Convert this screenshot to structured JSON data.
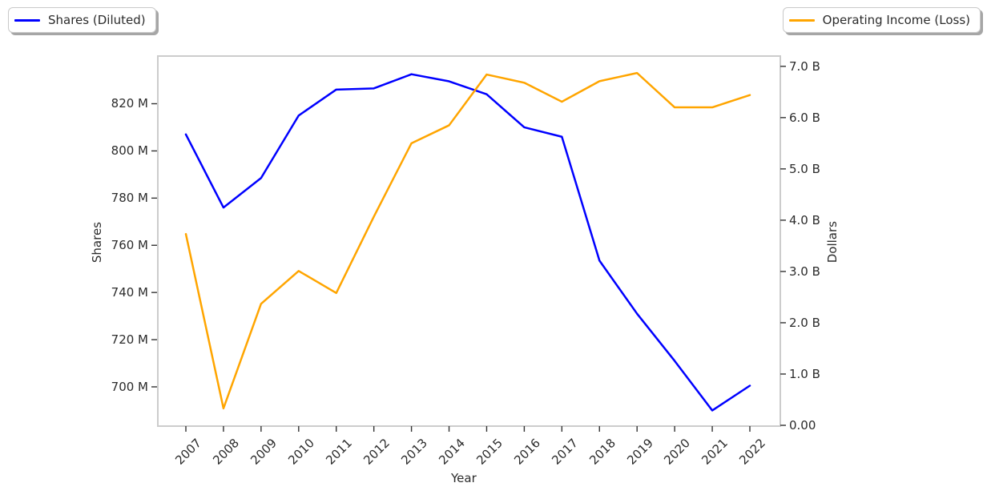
{
  "figure": {
    "background": "#ffffff",
    "plot_border_color": "#cccccc",
    "text_color": "#2b2b2b",
    "tick_color": "#333333"
  },
  "legends": {
    "left": {
      "label": "Shares (Diluted)",
      "color": "#0000ff"
    },
    "right": {
      "label": "Operating Income (Loss)",
      "color": "#ffa500"
    }
  },
  "chart_data": {
    "type": "line",
    "title": "",
    "xlabel": "Year",
    "grid": false,
    "legend_position": {
      "shares_series": "upper left, outside axes",
      "operating_income_series": "upper right, outside axes"
    },
    "x_years": [
      "2007",
      "2008",
      "2009",
      "2010",
      "2011",
      "2012",
      "2013",
      "2014",
      "2015",
      "2016",
      "2017",
      "2018",
      "2019",
      "2020",
      "2021",
      "2022"
    ],
    "series": [
      {
        "name": "Shares (Diluted)",
        "axis": "left",
        "color": "#0000ff",
        "units": "millions of shares",
        "values": [
          807,
          776,
          788.5,
          815,
          826,
          826.5,
          832.5,
          829.5,
          824,
          810,
          806,
          753.5,
          731,
          711,
          690,
          700.5
        ]
      },
      {
        "name": "Operating Income (Loss)",
        "axis": "right",
        "color": "#ffa500",
        "units": "billions of dollars",
        "values": [
          3.73,
          0.33,
          2.37,
          3.01,
          2.58,
          4.07,
          5.5,
          5.85,
          6.84,
          6.68,
          6.31,
          6.71,
          6.87,
          6.2,
          6.2,
          6.44
        ]
      }
    ],
    "y_axis_left": {
      "label": "Shares",
      "tick_labels": [
        "700 M",
        "720 M",
        "740 M",
        "760 M",
        "780 M",
        "800 M",
        "820 M"
      ],
      "tick_values_millions": [
        700,
        720,
        740,
        760,
        780,
        800,
        820
      ],
      "range_millions": [
        683.7,
        840.2
      ]
    },
    "y_axis_right": {
      "label": "Dollars",
      "tick_labels": [
        "0.00",
        "1.0 B",
        "2.0 B",
        "3.0 B",
        "4.0 B",
        "5.0 B",
        "6.0 B",
        "7.0 B"
      ],
      "tick_values_billions": [
        0,
        1,
        2,
        3,
        4,
        5,
        6,
        7
      ],
      "range_billions": [
        0,
        7.2
      ]
    }
  }
}
